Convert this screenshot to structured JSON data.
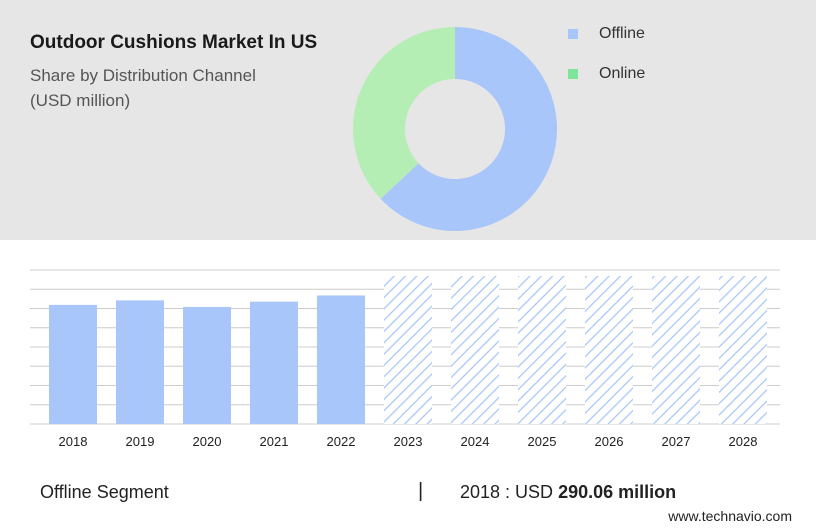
{
  "header": {
    "title": "Outdoor Cushions Market In US",
    "subtitle_line1": "Share by Distribution Channel",
    "subtitle_line2": "(USD million)"
  },
  "colors": {
    "offline": "#a8c6fa",
    "online": "#b5eeb5",
    "online_legend": "#7ee49a",
    "bar": "#a8c6fa",
    "hatch": "#a8c6fa",
    "panel_bg": "#e6e6e6",
    "grid": "#cccccc"
  },
  "chart_data": [
    {
      "type": "pie",
      "style": "donut",
      "labels": [
        "Offline",
        "Online"
      ],
      "values": [
        63,
        37
      ],
      "legend_position": "right"
    },
    {
      "type": "bar",
      "categories": [
        "2018",
        "2019",
        "2020",
        "2021",
        "2022",
        "2023",
        "2024",
        "2025",
        "2026",
        "2027",
        "2028"
      ],
      "values": [
        290.06,
        301,
        285,
        298,
        313,
        null,
        null,
        null,
        null,
        null,
        null
      ],
      "forecast_categories": [
        "2023",
        "2024",
        "2025",
        "2026",
        "2027",
        "2028"
      ],
      "forecast_style": "hatched",
      "ylim": [
        0,
        375
      ],
      "grid": true
    }
  ],
  "footer": {
    "segment": "Offline Segment",
    "separator": "|",
    "value_prefix": "2018 : USD",
    "value": "290.06 million",
    "brand": "www.technavio.com"
  }
}
